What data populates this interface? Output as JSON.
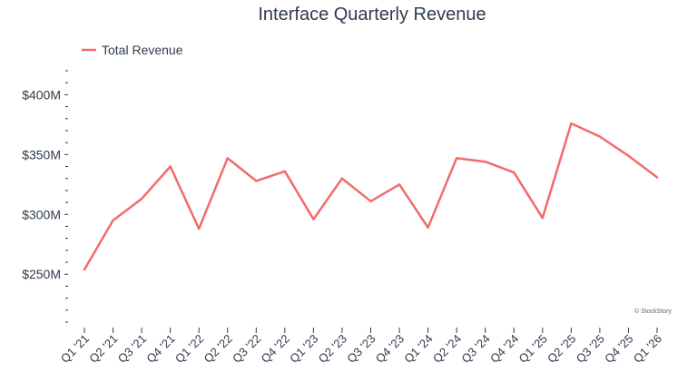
{
  "chart_data": {
    "type": "line",
    "title": "Interface Quarterly Revenue",
    "xlabel": "",
    "ylabel": "",
    "legend_position": "top-left",
    "grid": false,
    "ylim": [
      210,
      420
    ],
    "y_ticks": [
      250,
      300,
      350,
      400
    ],
    "y_tick_labels": [
      "$250M",
      "$300M",
      "$350M",
      "$400M"
    ],
    "categories": [
      "Q1 '21",
      "Q2 '21",
      "Q3 '21",
      "Q4 '21",
      "Q1 '22",
      "Q2 '22",
      "Q3 '22",
      "Q4 '22",
      "Q1 '23",
      "Q2 '23",
      "Q3 '23",
      "Q4 '23",
      "Q1 '24",
      "Q2 '24",
      "Q3 '24",
      "Q4 '24",
      "Q1 '25",
      "Q2 '25",
      "Q3 '25",
      "Q4 '25",
      "Q1 '26"
    ],
    "series": [
      {
        "name": "Total Revenue",
        "color": "#f26b6b",
        "values": [
          254,
          295,
          313,
          340,
          288,
          347,
          328,
          336,
          296,
          330,
          311,
          325,
          289,
          347,
          344,
          335,
          297,
          376,
          365,
          349,
          331
        ]
      }
    ],
    "credit": "© StockStory"
  }
}
